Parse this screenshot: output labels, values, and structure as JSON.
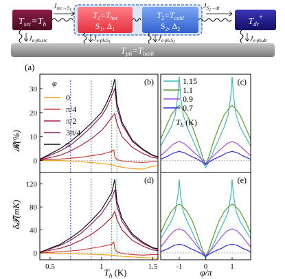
{
  "schematic": {
    "src": {
      "main": "T",
      "sub": "src",
      "eq": "=T",
      "eqsub": "h",
      "color": "#6b1030"
    },
    "s1": {
      "line1_main": "T",
      "line1_sub": "1",
      "line1_eq": "=T",
      "line1_eqsub": "hot",
      "line2": "S",
      "line2_sub": "1",
      "line2_rest": ", Δ",
      "line2_sub2": "1",
      "color": "#ef4a55"
    },
    "s2": {
      "line1_main": "T",
      "line1_sub": "2",
      "line1_eq": "=T",
      "line1_eqsub": "cold",
      "line2": "S",
      "line2_sub": "2",
      "line2_rest": ", Δ",
      "line2_sub2": "2",
      "color": "#3d75dd"
    },
    "dr": {
      "main": "T",
      "sub": "dr",
      "sup": "+",
      "color": "#201e86"
    },
    "bath": {
      "main": "T",
      "sub": "ph",
      "eq": "=T",
      "eqsub": "bath",
      "color": "#8a8a8a"
    },
    "flux_top": [
      {
        "main": "J",
        "sub": "src→S",
        "sub2": "1"
      },
      {
        "main": "J",
        "sub": "S",
        "sub2": "2",
        "rest": "→dr"
      }
    ],
    "flux_bottom": [
      {
        "main": "J",
        "sub": "e-ph,src"
      },
      {
        "main": "J",
        "sub": "e-ph,S",
        "sub2": "1"
      },
      {
        "main": "J",
        "sub": "e-ph,S",
        "sub2": "2"
      },
      {
        "main": "J",
        "sub": "e-ph,dr"
      }
    ]
  },
  "figure_label": "(a)",
  "panels": {
    "b": "(b)",
    "c": "(c)",
    "d": "(d)",
    "e": "(e)"
  },
  "axes": {
    "ylabel_top": "𝓡(%)",
    "ylabel_bottom": "δ𝓣(mK)",
    "xlabel_left_main": "T",
    "xlabel_left_sub": "h",
    "xlabel_left_unit": " (K)",
    "xlabel_right": "φ/π"
  },
  "legend_left": {
    "title": "φ",
    "items": [
      {
        "label": "0",
        "color": "#f2a219"
      },
      {
        "label": "π/4",
        "color": "#c8403c"
      },
      {
        "label": "π/2",
        "color": "#a6203f"
      },
      {
        "label": "3π/4",
        "color": "#8b1e6c"
      },
      {
        "label": "π",
        "color": "#111111"
      }
    ]
  },
  "legend_right": {
    "title_main": "T",
    "title_sub": "h",
    "title_unit": " (K)",
    "items": [
      {
        "label": "1.15",
        "color": "#3fb8bd"
      },
      {
        "label": "1.1",
        "color": "#5a9a32"
      },
      {
        "label": "0.9",
        "color": "#a24be0"
      },
      {
        "label": "0.7",
        "color": "#2b2bd6"
      }
    ]
  },
  "chart_data": [
    {
      "type": "line",
      "panel": "(b)",
      "xlabel": "",
      "ylabel": "𝓡(%)",
      "xlim": [
        0.4,
        1.55
      ],
      "ylim": [
        -5,
        36
      ],
      "yticks": [
        0,
        10,
        20,
        30
      ],
      "series": [
        {
          "name": "0",
          "x": [
            0.4,
            0.6,
            0.8,
            1.0,
            1.1,
            1.13,
            1.15,
            1.2,
            1.3,
            1.4,
            1.5,
            1.55
          ],
          "y": [
            0,
            0,
            -0.5,
            -1.2,
            -1.8,
            -2.0,
            -2.4,
            -2.8,
            -3.4,
            -3.6,
            -2.4,
            -2.2
          ]
        },
        {
          "name": "π/4",
          "x": [
            0.4,
            0.6,
            0.8,
            0.9,
            1.0,
            1.05,
            1.1,
            1.12,
            1.13,
            1.15,
            1.2,
            1.3,
            1.4,
            1.5,
            1.55
          ],
          "y": [
            0.2,
            0.6,
            1.3,
            2.0,
            2.6,
            3.2,
            3.8,
            4.4,
            1.5,
            0.4,
            -0.2,
            -0.6,
            -0.8,
            -0.5,
            -0.5
          ]
        },
        {
          "name": "π/2",
          "x": [
            0.4,
            0.6,
            0.7,
            0.8,
            0.9,
            1.0,
            1.05,
            1.1,
            1.13,
            1.15,
            1.2,
            1.3,
            1.4,
            1.5,
            1.55
          ],
          "y": [
            0.3,
            2.2,
            4.0,
            6.3,
            9.0,
            12.5,
            15.0,
            18.0,
            19.5,
            15.5,
            10.0,
            5.5,
            3.0,
            1.2,
            1.0
          ]
        },
        {
          "name": "3π/4",
          "x": [
            0.4,
            0.6,
            0.7,
            0.8,
            0.9,
            1.0,
            1.05,
            1.1,
            1.13,
            1.15,
            1.2,
            1.3,
            1.4,
            1.5,
            1.55
          ],
          "y": [
            0.4,
            4.0,
            6.5,
            10.0,
            14.0,
            18.5,
            22.0,
            27.0,
            30.0,
            22.0,
            15.0,
            8.0,
            4.5,
            2.0,
            1.5
          ]
        },
        {
          "name": "π",
          "x": [
            0.4,
            0.6,
            0.7,
            0.8,
            0.9,
            1.0,
            1.05,
            1.1,
            1.13,
            1.15,
            1.2,
            1.3,
            1.4,
            1.5,
            1.55
          ],
          "y": [
            0.5,
            5.0,
            8.0,
            11.5,
            15.5,
            20.0,
            24.0,
            29.0,
            34.0,
            24.0,
            16.0,
            8.5,
            4.8,
            2.2,
            1.6
          ]
        }
      ],
      "vlines": [
        {
          "x": 0.7,
          "color": "#2b2bd6"
        },
        {
          "x": 0.9,
          "color": "#a24be0"
        },
        {
          "x": 1.1,
          "color": "#5a9a32"
        },
        {
          "x": 1.15,
          "color": "#3fb8bd"
        }
      ]
    },
    {
      "type": "line",
      "panel": "(c)",
      "xlabel": "",
      "ylabel": "",
      "xlim": [
        -1.7,
        1.7
      ],
      "ylim": [
        -5,
        36
      ],
      "series": [
        {
          "name": "1.15",
          "x": [
            -1.7,
            -1.5,
            -1.3,
            -1.15,
            -1.05,
            -1.0,
            -0.95,
            -0.85,
            -0.7,
            -0.5,
            -0.3,
            -0.1,
            0,
            0.1,
            0.3,
            0.5,
            0.7,
            0.85,
            0.95,
            1.0,
            1.05,
            1.15,
            1.3,
            1.5,
            1.7
          ],
          "y": [
            6,
            10,
            14,
            19,
            27,
            35,
            27,
            19,
            14,
            9,
            4,
            -1,
            -3,
            -1,
            4,
            9,
            14,
            19,
            27,
            35,
            27,
            19,
            14,
            10,
            6
          ]
        },
        {
          "name": "1.1",
          "x": [
            -1.7,
            -1.5,
            -1.3,
            -1.1,
            -1.0,
            -0.9,
            -0.7,
            -0.5,
            -0.3,
            -0.1,
            0,
            0.1,
            0.3,
            0.5,
            0.7,
            0.9,
            1.0,
            1.1,
            1.3,
            1.5,
            1.7
          ],
          "y": [
            9,
            14,
            19,
            22,
            23,
            22,
            19,
            14,
            8,
            1,
            -1.5,
            1,
            8,
            14,
            19,
            22,
            23,
            22,
            19,
            14,
            9
          ]
        },
        {
          "name": "0.9",
          "x": [
            -1.7,
            -1.4,
            -1.2,
            -1.0,
            -0.8,
            -0.6,
            -0.3,
            -0.1,
            0,
            0.1,
            0.3,
            0.6,
            0.8,
            1.0,
            1.2,
            1.4,
            1.7
          ],
          "y": [
            2,
            5,
            7,
            8,
            7,
            5,
            2,
            0,
            -1.5,
            0,
            2,
            5,
            7,
            8,
            7,
            5,
            2
          ]
        },
        {
          "name": "0.7",
          "x": [
            -1.7,
            -1.4,
            -1.2,
            -1.0,
            -0.8,
            -0.6,
            -0.3,
            -0.1,
            0,
            0.1,
            0.3,
            0.6,
            0.8,
            1.0,
            1.2,
            1.4,
            1.7
          ],
          "y": [
            0.5,
            2,
            3.2,
            3.8,
            3.2,
            2,
            0.5,
            -0.8,
            -1.8,
            -0.8,
            0.5,
            2,
            3.2,
            3.8,
            3.2,
            2,
            0.5
          ]
        }
      ]
    },
    {
      "type": "line",
      "panel": "(d)",
      "xlabel": "T_h (K)",
      "ylabel": "δ𝓣(mK)",
      "xlim": [
        0.4,
        1.55
      ],
      "ylim": [
        -12,
        140
      ],
      "xticks": [
        0.5,
        1.0,
        1.5
      ],
      "yticks": [
        0,
        40,
        80,
        120
      ],
      "series": [
        {
          "name": "0",
          "x": [
            0.4,
            0.6,
            0.8,
            1.0,
            1.1,
            1.15,
            1.2,
            1.3,
            1.4,
            1.5,
            1.55
          ],
          "y": [
            0,
            -1,
            -2,
            -3,
            -4,
            -5,
            -6,
            -7,
            -8,
            -9,
            -10
          ]
        },
        {
          "name": "π/4",
          "x": [
            0.4,
            0.6,
            0.8,
            0.9,
            1.0,
            1.1,
            1.12,
            1.13,
            1.15,
            1.2,
            1.3,
            1.4,
            1.5,
            1.55
          ],
          "y": [
            0,
            2,
            5,
            8,
            11,
            15,
            19,
            6,
            2,
            -1,
            -3,
            -4,
            -3,
            -3
          ]
        },
        {
          "name": "π/2",
          "x": [
            0.4,
            0.6,
            0.7,
            0.8,
            0.9,
            1.0,
            1.1,
            1.13,
            1.15,
            1.2,
            1.3,
            1.4,
            1.5,
            1.55
          ],
          "y": [
            1,
            8,
            14,
            22,
            32,
            45,
            62,
            72,
            58,
            40,
            22,
            12,
            5,
            4
          ]
        },
        {
          "name": "3π/4",
          "x": [
            0.4,
            0.6,
            0.7,
            0.8,
            0.9,
            1.0,
            1.1,
            1.13,
            1.15,
            1.2,
            1.3,
            1.4,
            1.5,
            1.55
          ],
          "y": [
            1,
            13,
            22,
            34,
            50,
            68,
            95,
            110,
            82,
            55,
            30,
            17,
            8,
            6
          ]
        },
        {
          "name": "π",
          "x": [
            0.4,
            0.6,
            0.7,
            0.8,
            0.9,
            1.0,
            1.1,
            1.13,
            1.15,
            1.2,
            1.3,
            1.4,
            1.5,
            1.55
          ],
          "y": [
            1,
            15,
            26,
            39,
            56,
            75,
            105,
            128,
            90,
            60,
            33,
            19,
            9,
            7
          ]
        }
      ],
      "vlines": [
        {
          "x": 0.7,
          "color": "#2b2bd6"
        },
        {
          "x": 0.9,
          "color": "#a24be0"
        },
        {
          "x": 1.1,
          "color": "#5a9a32"
        },
        {
          "x": 1.15,
          "color": "#3fb8bd"
        }
      ]
    },
    {
      "type": "line",
      "panel": "(e)",
      "xlabel": "φ/π",
      "ylabel": "",
      "xlim": [
        -1.7,
        1.7
      ],
      "ylim": [
        -12,
        140
      ],
      "xticks": [
        -1,
        0,
        1
      ],
      "series": [
        {
          "name": "1.15",
          "x": [
            -1.7,
            -1.5,
            -1.3,
            -1.15,
            -1.05,
            -1.0,
            -0.95,
            -0.85,
            -0.7,
            -0.5,
            -0.3,
            -0.1,
            0,
            0.1,
            0.3,
            0.5,
            0.7,
            0.85,
            0.95,
            1.0,
            1.05,
            1.15,
            1.3,
            1.5,
            1.7
          ],
          "y": [
            25,
            40,
            55,
            72,
            100,
            128,
            100,
            72,
            55,
            36,
            15,
            -3,
            -8,
            -3,
            15,
            36,
            55,
            72,
            100,
            128,
            100,
            72,
            55,
            40,
            25
          ]
        },
        {
          "name": "1.1",
          "x": [
            -1.7,
            -1.5,
            -1.3,
            -1.1,
            -1.0,
            -0.9,
            -0.7,
            -0.5,
            -0.3,
            -0.1,
            0,
            0.1,
            0.3,
            0.5,
            0.7,
            0.9,
            1.0,
            1.1,
            1.3,
            1.5,
            1.7
          ],
          "y": [
            35,
            55,
            72,
            82,
            85,
            82,
            72,
            55,
            30,
            3,
            -5,
            3,
            30,
            55,
            72,
            82,
            85,
            82,
            72,
            55,
            35
          ]
        },
        {
          "name": "0.9",
          "x": [
            -1.7,
            -1.4,
            -1.2,
            -1.0,
            -0.8,
            -0.6,
            -0.3,
            -0.1,
            0,
            0.1,
            0.3,
            0.6,
            0.8,
            1.0,
            1.2,
            1.4,
            1.7
          ],
          "y": [
            10,
            28,
            38,
            42,
            38,
            28,
            10,
            0,
            -6,
            0,
            10,
            28,
            38,
            42,
            38,
            28,
            10
          ]
        },
        {
          "name": "0.7",
          "x": [
            -1.7,
            -1.4,
            -1.2,
            -1.0,
            -0.8,
            -0.6,
            -0.3,
            -0.1,
            0,
            0.1,
            0.3,
            0.6,
            0.8,
            1.0,
            1.2,
            1.4,
            1.7
          ],
          "y": [
            2,
            8,
            13,
            15,
            13,
            8,
            2,
            -3,
            -6,
            -3,
            2,
            8,
            13,
            15,
            13,
            8,
            2
          ]
        }
      ]
    }
  ]
}
